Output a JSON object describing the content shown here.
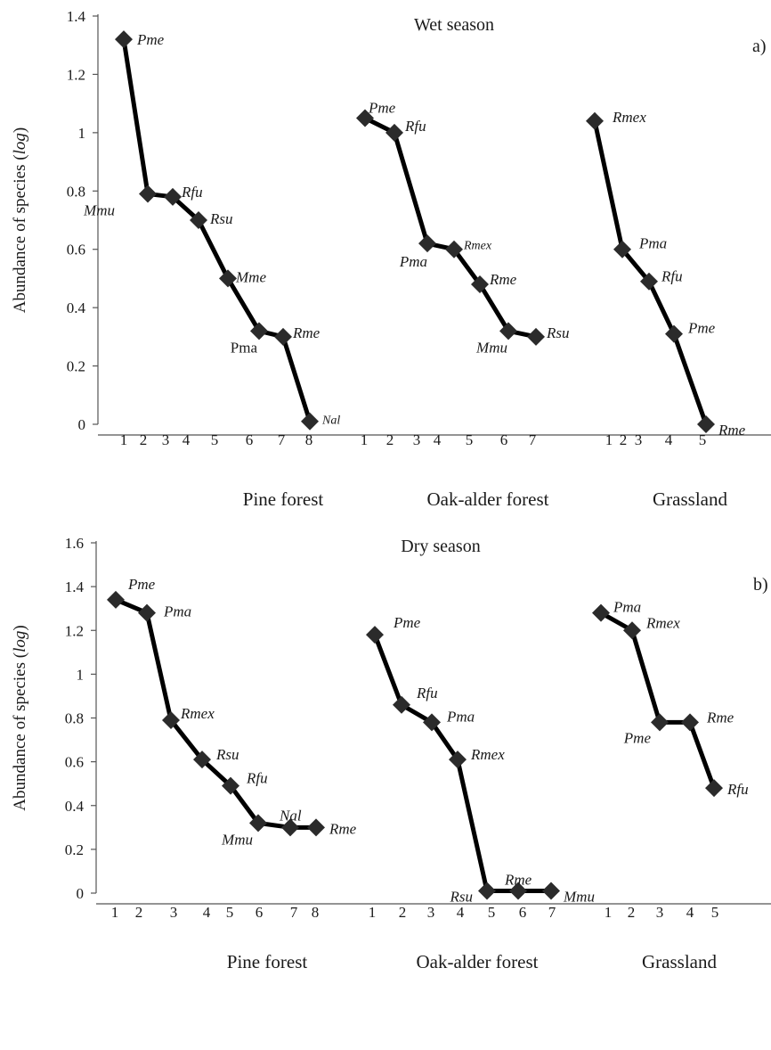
{
  "chart_data": [
    {
      "type": "line",
      "panel": "a)",
      "title": "Wet season",
      "ylabel": "Abundance of species (log)",
      "ylabel_main": "Abundance of species (",
      "ylabel_italic": "log",
      "ylabel_close": ")",
      "ylim": [
        0,
        1.4
      ],
      "yticks": [
        0,
        0.2,
        0.4,
        0.6,
        0.8,
        1,
        1.2,
        1.4
      ],
      "ytick_labels": [
        "0",
        "0.2",
        "0.4",
        "0.6",
        "0.8",
        "1",
        "1.2",
        "1.4"
      ],
      "groups": [
        {
          "name": "Pine forest",
          "ranks": [
            "1",
            "2",
            "3",
            "4",
            "5",
            "6",
            "7",
            "8"
          ],
          "points": [
            {
              "rank": 1,
              "y": 1.32,
              "label": "Pme"
            },
            {
              "rank": 2,
              "y": 0.79,
              "label": "Mmu"
            },
            {
              "rank": 3,
              "y": 0.78,
              "label": "Rfu"
            },
            {
              "rank": 4,
              "y": 0.7,
              "label": "Rsu"
            },
            {
              "rank": 5,
              "y": 0.5,
              "label": "Mme"
            },
            {
              "rank": 6,
              "y": 0.32,
              "label": "Pma"
            },
            {
              "rank": 7,
              "y": 0.3,
              "label": "Rme"
            },
            {
              "rank": 8,
              "y": 0.01,
              "label": "Nal"
            }
          ]
        },
        {
          "name": "Oak-alder forest",
          "ranks": [
            "1",
            "2",
            "3",
            "4",
            "5",
            "6",
            "7"
          ],
          "points": [
            {
              "rank": 1,
              "y": 1.05,
              "label": "Pme"
            },
            {
              "rank": 2,
              "y": 1.0,
              "label": "Rfu"
            },
            {
              "rank": 3,
              "y": 0.62,
              "label": "Pma"
            },
            {
              "rank": 4,
              "y": 0.6,
              "label": "Rmex"
            },
            {
              "rank": 5,
              "y": 0.48,
              "label": "Rme"
            },
            {
              "rank": 6,
              "y": 0.32,
              "label": "Mmu"
            },
            {
              "rank": 7,
              "y": 0.3,
              "label": "Rsu"
            }
          ]
        },
        {
          "name": "Grassland",
          "ranks": [
            "1",
            "2",
            "3",
            "4",
            "5"
          ],
          "points": [
            {
              "rank": 1,
              "y": 1.04,
              "label": "Rmex"
            },
            {
              "rank": 2,
              "y": 0.6,
              "label": "Pma"
            },
            {
              "rank": 3,
              "y": 0.49,
              "label": "Rfu"
            },
            {
              "rank": 4,
              "y": 0.31,
              "label": "Pme"
            },
            {
              "rank": 5,
              "y": 0.0,
              "label": "Rme"
            }
          ]
        }
      ]
    },
    {
      "type": "line",
      "panel": "b)",
      "title": "Dry season",
      "ylabel": "Abundance of species (log)",
      "ylabel_main": "Abundance of species (",
      "ylabel_italic": "log",
      "ylabel_close": ")",
      "ylim": [
        0,
        1.6
      ],
      "yticks": [
        0,
        0.2,
        0.4,
        0.6,
        0.8,
        1,
        1.2,
        1.4,
        1.6
      ],
      "ytick_labels": [
        "0",
        "0.2",
        "0.4",
        "0.6",
        "0.8",
        "1",
        "1.2",
        "1.4",
        "1.6"
      ],
      "groups": [
        {
          "name": "Pine forest",
          "ranks": [
            "1",
            "2",
            "3",
            "4",
            "5",
            "6",
            "7",
            "8"
          ],
          "points": [
            {
              "rank": 1,
              "y": 1.34,
              "label": "Pme"
            },
            {
              "rank": 2,
              "y": 1.28,
              "label": "Pma"
            },
            {
              "rank": 3,
              "y": 0.79,
              "label": "Rmex"
            },
            {
              "rank": 4,
              "y": 0.61,
              "label": "Rsu"
            },
            {
              "rank": 5,
              "y": 0.49,
              "label": "Rfu"
            },
            {
              "rank": 6,
              "y": 0.32,
              "label": "Mmu"
            },
            {
              "rank": 7,
              "y": 0.3,
              "label": "Nal"
            },
            {
              "rank": 8,
              "y": 0.3,
              "label": "Rme"
            }
          ]
        },
        {
          "name": "Oak-alder forest",
          "ranks": [
            "1",
            "2",
            "3",
            "4",
            "5",
            "6",
            "7"
          ],
          "points": [
            {
              "rank": 1,
              "y": 1.18,
              "label": "Pme"
            },
            {
              "rank": 2,
              "y": 0.86,
              "label": "Rfu"
            },
            {
              "rank": 3,
              "y": 0.78,
              "label": "Pma"
            },
            {
              "rank": 4,
              "y": 0.61,
              "label": "Rmex"
            },
            {
              "rank": 5,
              "y": 0.01,
              "label": "Rsu"
            },
            {
              "rank": 6,
              "y": 0.01,
              "label": "Rme"
            },
            {
              "rank": 7,
              "y": 0.01,
              "label": "Mmu"
            }
          ]
        },
        {
          "name": "Grassland",
          "ranks": [
            "1",
            "2",
            "3",
            "4",
            "5"
          ],
          "points": [
            {
              "rank": 1,
              "y": 1.28,
              "label": "Pma"
            },
            {
              "rank": 2,
              "y": 1.2,
              "label": "Rmex"
            },
            {
              "rank": 3,
              "y": 0.78,
              "label": "Pme"
            },
            {
              "rank": 4,
              "y": 0.78,
              "label": "Rme"
            },
            {
              "rank": 5,
              "y": 0.48,
              "label": "Rfu"
            }
          ]
        }
      ]
    }
  ]
}
